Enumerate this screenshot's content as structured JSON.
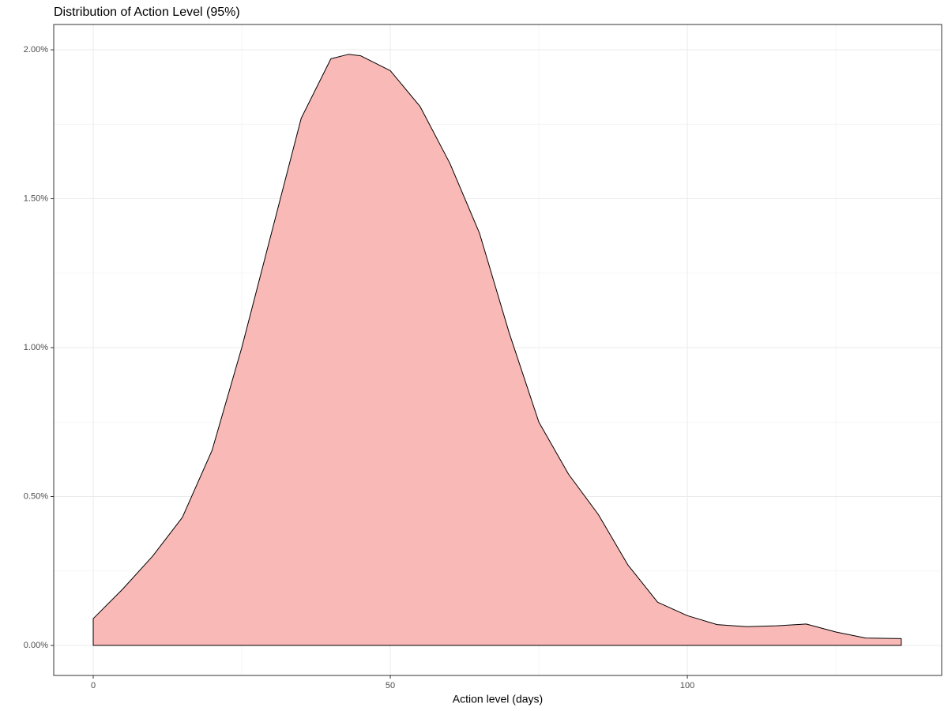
{
  "chart_data": {
    "type": "density",
    "title": "Distribution of Action Level (95%)",
    "x_label": "Action level (days)",
    "x": [
      0,
      5,
      10,
      15,
      20,
      25,
      30,
      35,
      40,
      43,
      45,
      50,
      55,
      60,
      65,
      70,
      75,
      80,
      85,
      90,
      95,
      100,
      105,
      110,
      115,
      120,
      125,
      130,
      136
    ],
    "values": [
      0.09,
      0.19,
      0.3,
      0.43,
      0.655,
      1.0,
      1.385,
      1.77,
      1.97,
      1.985,
      1.98,
      1.93,
      1.81,
      1.62,
      1.385,
      1.05,
      0.75,
      0.575,
      0.44,
      0.27,
      0.145,
      0.1,
      0.07,
      0.063,
      0.066,
      0.072,
      0.045,
      0.025,
      0.023
    ],
    "color": "#f8b9b7",
    "xlim": [
      -6.65,
      142.8
    ],
    "ylim": [
      -0.1008,
      2.085
    ],
    "xticks": [
      0,
      50,
      100
    ],
    "yticks": [
      {
        "value": 0,
        "label": "0.00%"
      },
      {
        "value": 0.5,
        "label": "0.50%"
      },
      {
        "value": 1,
        "label": "1.00%"
      },
      {
        "value": 1.5,
        "label": "1.50%"
      },
      {
        "value": 2,
        "label": "2.00%"
      }
    ],
    "x_minor_ticks": [
      25,
      75,
      125
    ],
    "y_minor_ticks": [
      0.25,
      0.75,
      1.25,
      1.75
    ],
    "grid": true
  }
}
